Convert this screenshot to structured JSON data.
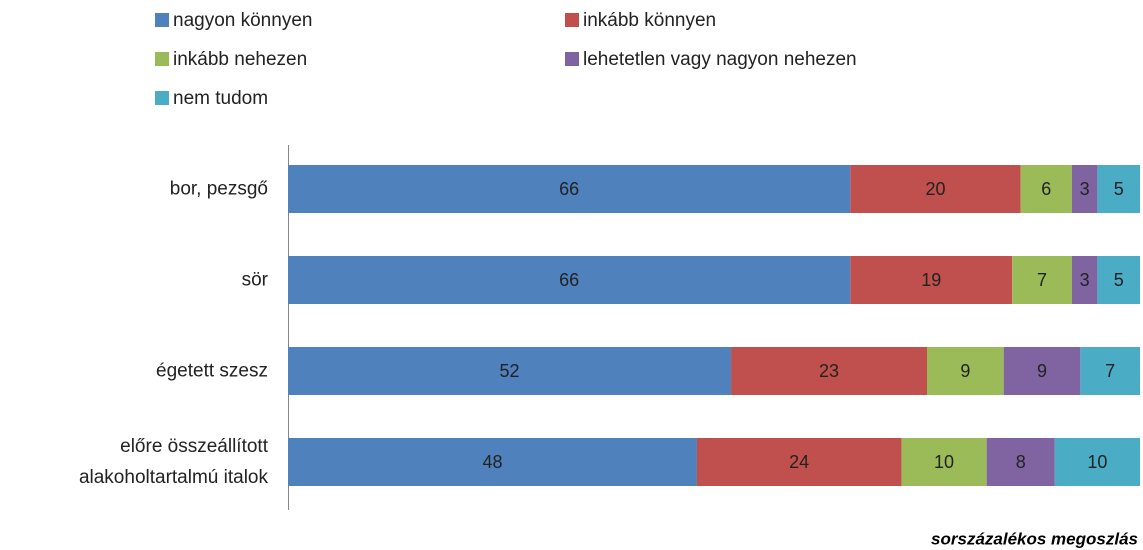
{
  "chart_data": {
    "type": "stacked_barh",
    "categories": [
      "bor, pezsgő",
      "sör",
      "égetett szesz",
      "előre összeállított\nalakoholtartalmú italok"
    ],
    "series": [
      {
        "name": "nagyon könnyen",
        "color": "#4f81bd",
        "values": [
          66,
          66,
          52,
          48
        ]
      },
      {
        "name": "inkább könnyen",
        "color": "#c0504d",
        "values": [
          20,
          19,
          23,
          24
        ]
      },
      {
        "name": "inkább nehezen",
        "color": "#9bbb59",
        "values": [
          6,
          7,
          9,
          10
        ]
      },
      {
        "name": "lehetetlen vagy nagyon nehezen",
        "color": "#8064a2",
        "values": [
          3,
          3,
          9,
          8
        ]
      },
      {
        "name": "nem tudom",
        "color": "#4bacc6",
        "values": [
          5,
          5,
          7,
          10
        ]
      }
    ],
    "xlim": [
      0,
      100
    ],
    "legend": "top",
    "annotation": "sorszázalékos megoszlás"
  }
}
